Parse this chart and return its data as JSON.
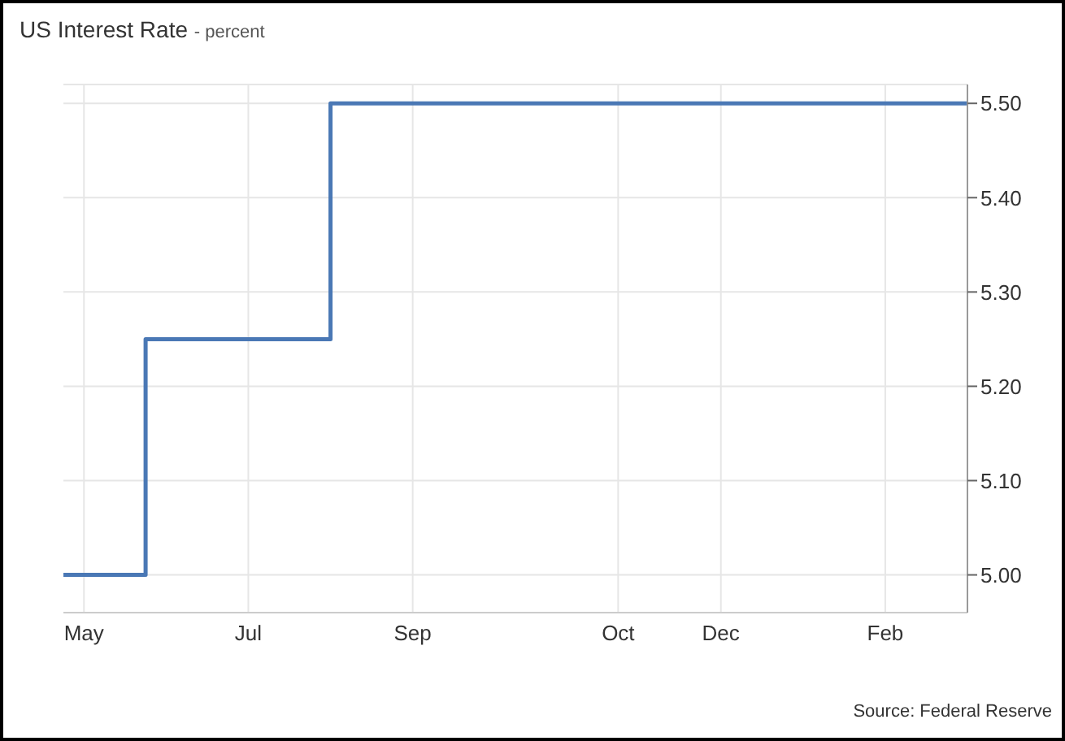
{
  "chart_data": {
    "type": "step",
    "title": "US Interest Rate",
    "subtitle": "- percent",
    "categories": [
      null,
      "May",
      null,
      null,
      null,
      null,
      null,
      null,
      null,
      "Jul",
      null,
      null,
      null,
      null,
      null,
      null,
      null,
      "Sep",
      null,
      null,
      null,
      null,
      null,
      null,
      null,
      null,
      null,
      "Oct",
      null,
      null,
      null,
      null,
      "Dec",
      null,
      null,
      null,
      null,
      null,
      null,
      null,
      "Feb",
      null,
      null,
      null,
      null
    ],
    "series": [
      {
        "color": "#4a78b5",
        "values": [
          5.0,
          5.0,
          5.0,
          5.0,
          5.25,
          5.25,
          5.25,
          5.25,
          5.25,
          5.25,
          5.25,
          5.25,
          5.25,
          5.5,
          5.5,
          5.5,
          5.5,
          5.5,
          5.5,
          5.5,
          5.5,
          5.5,
          5.5,
          5.5,
          5.5,
          5.5,
          5.5,
          5.5,
          5.5,
          5.5,
          5.5,
          5.5,
          5.5,
          5.5,
          5.5,
          5.5,
          5.5,
          5.5,
          5.5,
          5.5,
          5.5,
          5.5,
          5.5,
          5.5,
          5.5
        ]
      }
    ],
    "ylim": [
      4.96,
      5.52
    ],
    "yticks": [
      {
        "value": 5.0,
        "label": "5.00"
      },
      {
        "value": 5.1,
        "label": "5.10"
      },
      {
        "value": 5.2,
        "label": "5.20"
      },
      {
        "value": 5.3,
        "label": "5.30"
      },
      {
        "value": 5.4,
        "label": "5.40"
      },
      {
        "value": 5.5,
        "label": "5.50"
      }
    ],
    "grid": true,
    "legend": false,
    "annotations": [
      "Source: Federal Reserve"
    ]
  }
}
